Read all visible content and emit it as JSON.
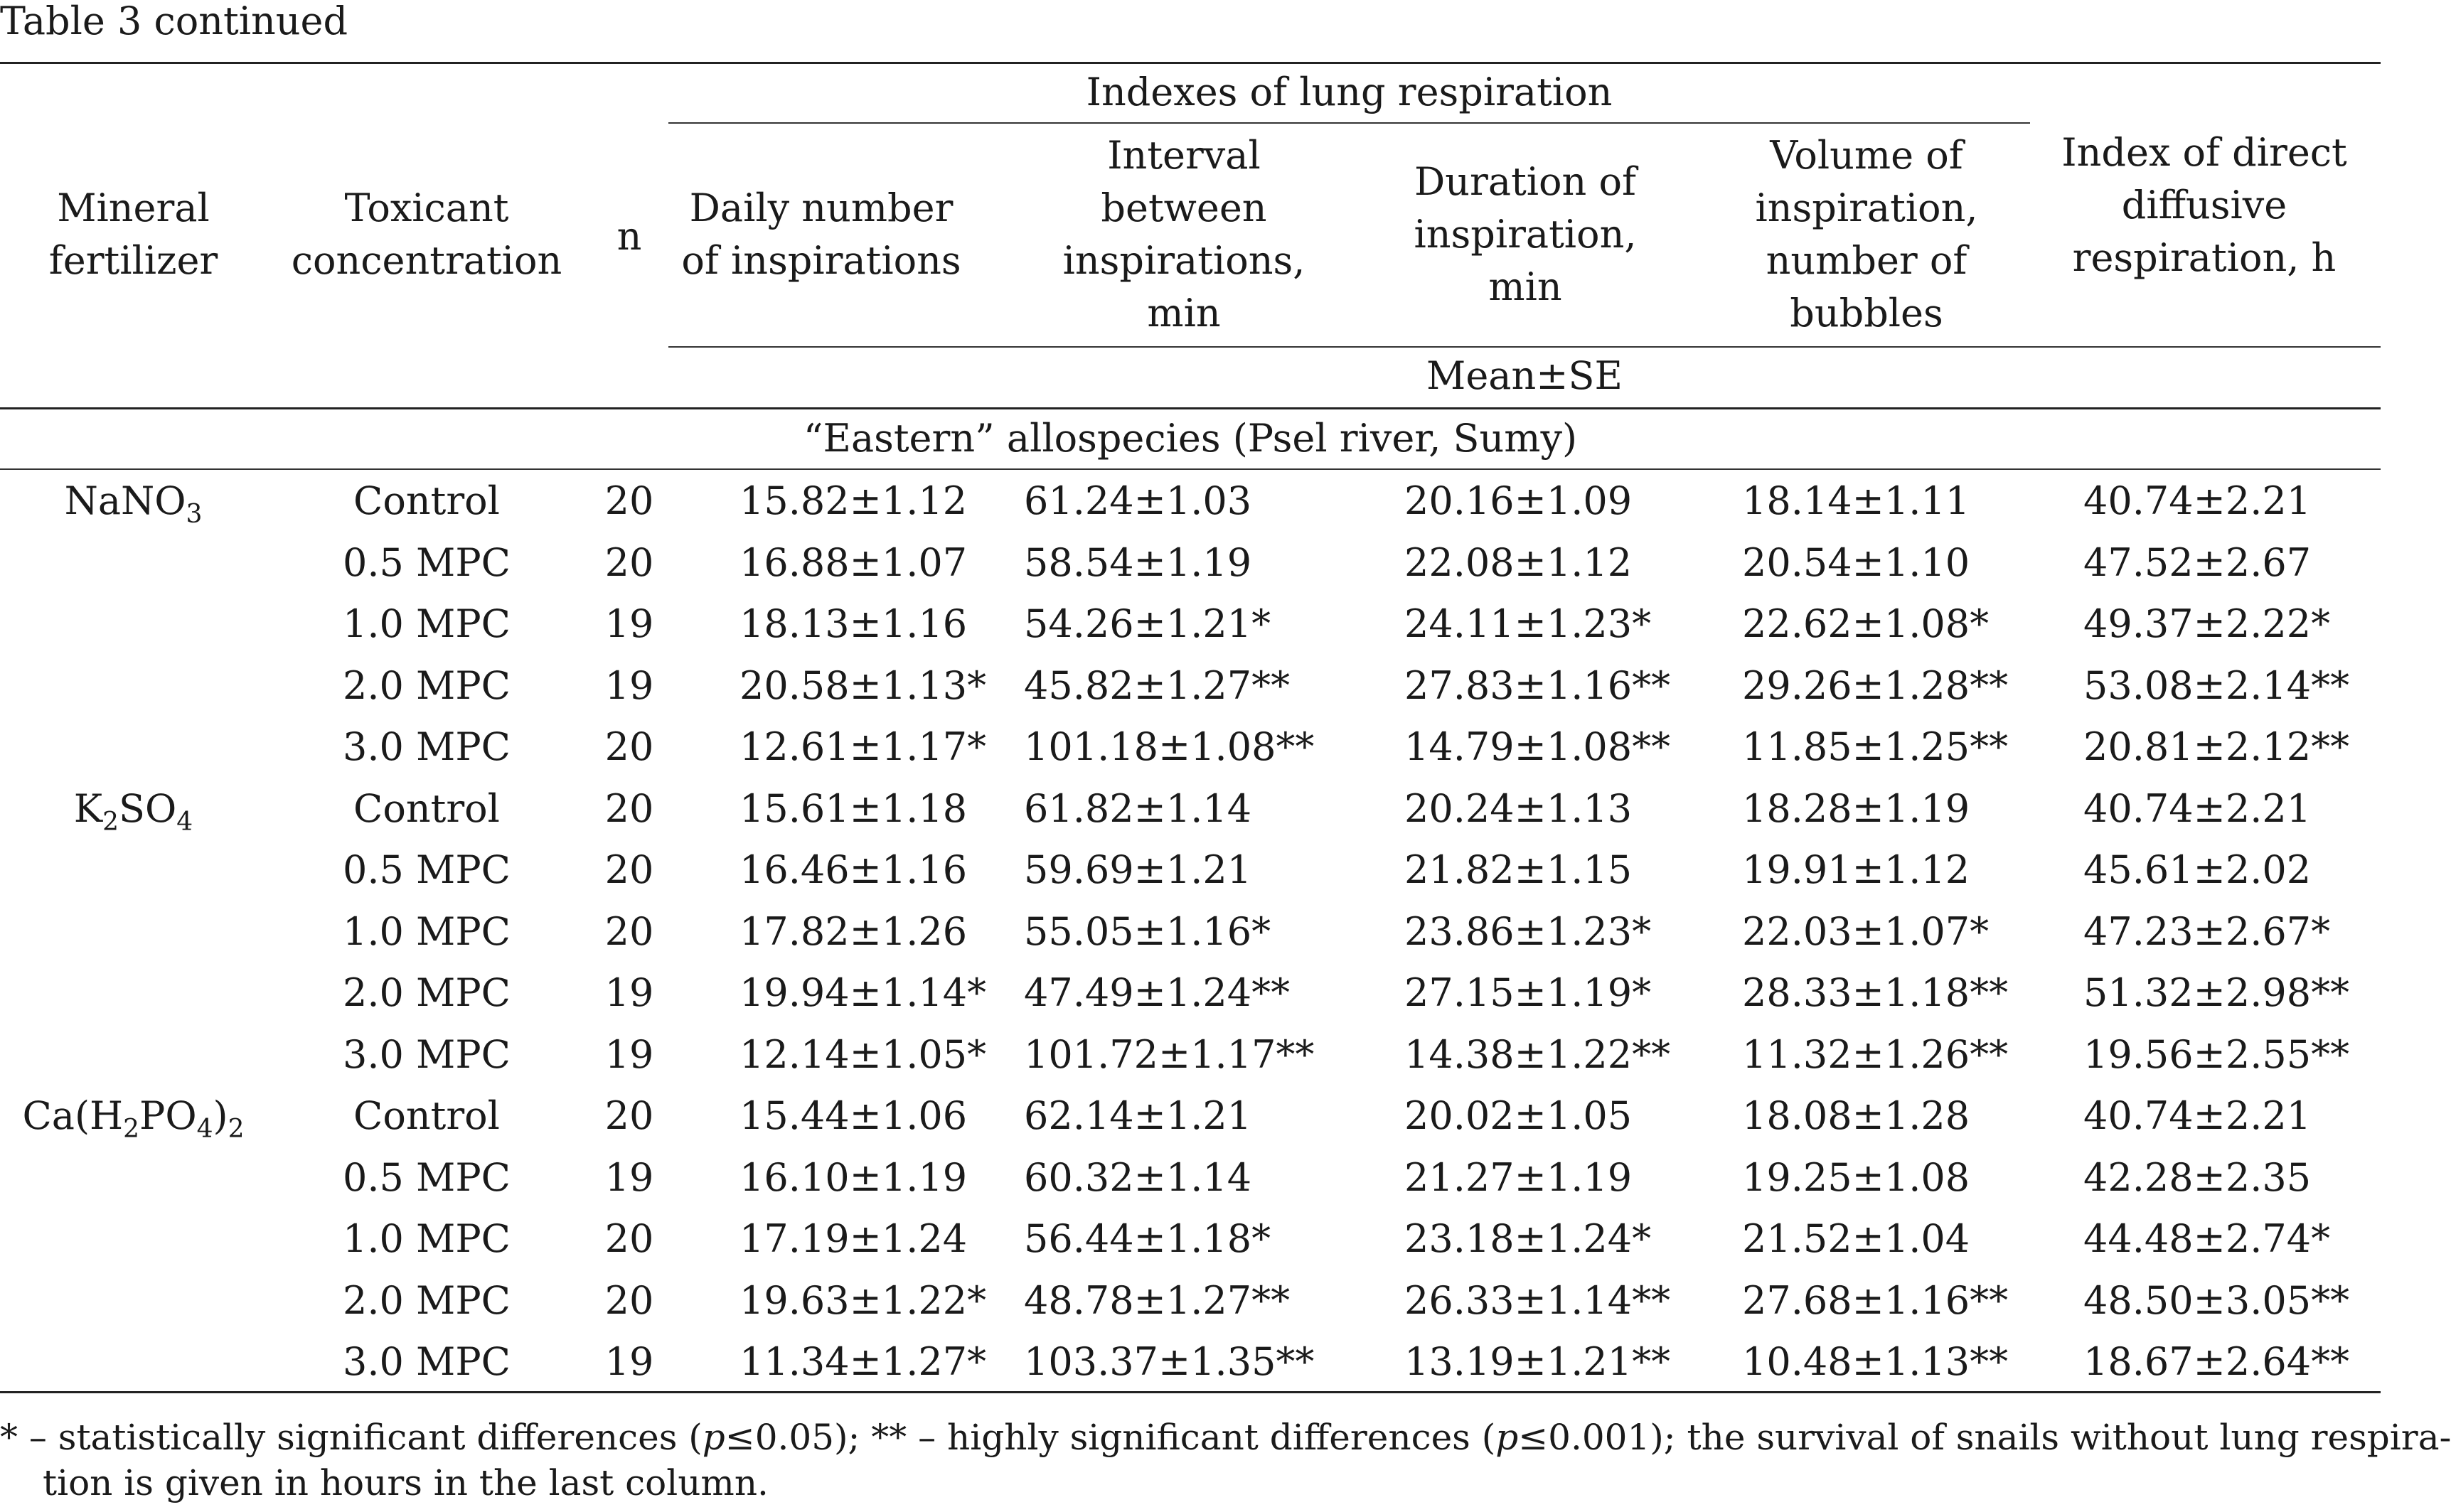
{
  "caption": "Table 3 continued",
  "header": {
    "col_mineral": [
      "Mineral",
      "fertilizer"
    ],
    "col_toxicant": [
      "Toxicant",
      "concentration"
    ],
    "col_n": "n",
    "group_lung": "Indexes of lung respiration",
    "col_daily": [
      "Daily number",
      "of inspirations"
    ],
    "col_interval": [
      "Interval",
      "between",
      "inspirations,",
      "min"
    ],
    "col_duration": [
      "Duration of",
      "inspiration,",
      "min"
    ],
    "col_volume": [
      "Volume of",
      "inspiration,",
      "number of",
      "bubbles"
    ],
    "col_direct": [
      "Index of direct",
      "diffusive",
      "respiration, h"
    ],
    "mean_se": "Mean±SE"
  },
  "section_label": "“Eastern” allospecies (Psel river, Sumy)",
  "groups": [
    {
      "fertilizer_parts": [
        "NaNO",
        "3",
        ""
      ],
      "rows": [
        {
          "conc": "Control",
          "n": "20",
          "daily": "15.82±1.12",
          "interval": "61.24±1.03",
          "duration": "20.16±1.09",
          "volume": "18.14±1.11",
          "direct": "40.74±2.21"
        },
        {
          "conc": "0.5 MPC",
          "n": "20",
          "daily": "16.88±1.07",
          "interval": "58.54±1.19",
          "duration": "22.08±1.12",
          "volume": "20.54±1.10",
          "direct": "47.52±2.67"
        },
        {
          "conc": "1.0 MPC",
          "n": "19",
          "daily": "18.13±1.16",
          "interval": "54.26±1.21*",
          "duration": "24.11±1.23*",
          "volume": "22.62±1.08*",
          "direct": "49.37±2.22*"
        },
        {
          "conc": "2.0 MPC",
          "n": "19",
          "daily": "20.58±1.13*",
          "interval": "45.82±1.27**",
          "duration": "27.83±1.16**",
          "volume": "29.26±1.28**",
          "direct": "53.08±2.14**"
        },
        {
          "conc": "3.0 MPC",
          "n": "20",
          "daily": "12.61±1.17*",
          "interval": "101.18±1.08**",
          "duration": "14.79±1.08**",
          "volume": "11.85±1.25**",
          "direct": "20.81±2.12**"
        }
      ]
    },
    {
      "fertilizer_parts": [
        "K",
        "2",
        "SO",
        "4"
      ],
      "rows": [
        {
          "conc": "Control",
          "n": "20",
          "daily": "15.61±1.18",
          "interval": "61.82±1.14",
          "duration": "20.24±1.13",
          "volume": "18.28±1.19",
          "direct": "40.74±2.21"
        },
        {
          "conc": "0.5 MPC",
          "n": "20",
          "daily": "16.46±1.16",
          "interval": "59.69±1.21",
          "duration": "21.82±1.15",
          "volume": "19.91±1.12",
          "direct": "45.61±2.02"
        },
        {
          "conc": "1.0 MPC",
          "n": "20",
          "daily": "17.82±1.26",
          "interval": "55.05±1.16*",
          "duration": "23.86±1.23*",
          "volume": "22.03±1.07*",
          "direct": "47.23±2.67*"
        },
        {
          "conc": "2.0 MPC",
          "n": "19",
          "daily": "19.94±1.14*",
          "interval": "47.49±1.24**",
          "duration": "27.15±1.19*",
          "volume": "28.33±1.18**",
          "direct": "51.32±2.98**"
        },
        {
          "conc": "3.0 MPC",
          "n": "19",
          "daily": "12.14±1.05*",
          "interval": "101.72±1.17**",
          "duration": "14.38±1.22**",
          "volume": "11.32±1.26**",
          "direct": "19.56±2.55**"
        }
      ]
    },
    {
      "fertilizer_parts": [
        "Ca(H",
        "2",
        "PO",
        "4",
        ")",
        "2"
      ],
      "rows": [
        {
          "conc": "Control",
          "n": "20",
          "daily": "15.44±1.06",
          "interval": "62.14±1.21",
          "duration": "20.02±1.05",
          "volume": "18.08±1.28",
          "direct": "40.74±2.21"
        },
        {
          "conc": "0.5 MPC",
          "n": "19",
          "daily": "16.10±1.19",
          "interval": "60.32±1.14",
          "duration": "21.27±1.19",
          "volume": "19.25±1.08",
          "direct": "42.28±2.35"
        },
        {
          "conc": "1.0 MPC",
          "n": "20",
          "daily": "17.19±1.24",
          "interval": "56.44±1.18*",
          "duration": "23.18±1.24*",
          "volume": "21.52±1.04",
          "direct": "44.48±2.74*"
        },
        {
          "conc": "2.0 MPC",
          "n": "20",
          "daily": "19.63±1.22*",
          "interval": "48.78±1.27**",
          "duration": "26.33±1.14**",
          "volume": "27.68±1.16**",
          "direct": "48.50±3.05**"
        },
        {
          "conc": "3.0 MPC",
          "n": "19",
          "daily": "11.34±1.27*",
          "interval": "103.37±1.35**",
          "duration": "13.19±1.21**",
          "volume": "10.48±1.13**",
          "direct": "18.67±2.64**"
        }
      ]
    }
  ],
  "footnote": {
    "part1": "* – statistically significant differences (",
    "p1": "p",
    "part2": "≤0.05); ** – highly significant differences (",
    "p2": "p",
    "part3": "≤0.001); the survival of snails without lung respira-",
    "line2": "tion is given in hours in the last column."
  }
}
